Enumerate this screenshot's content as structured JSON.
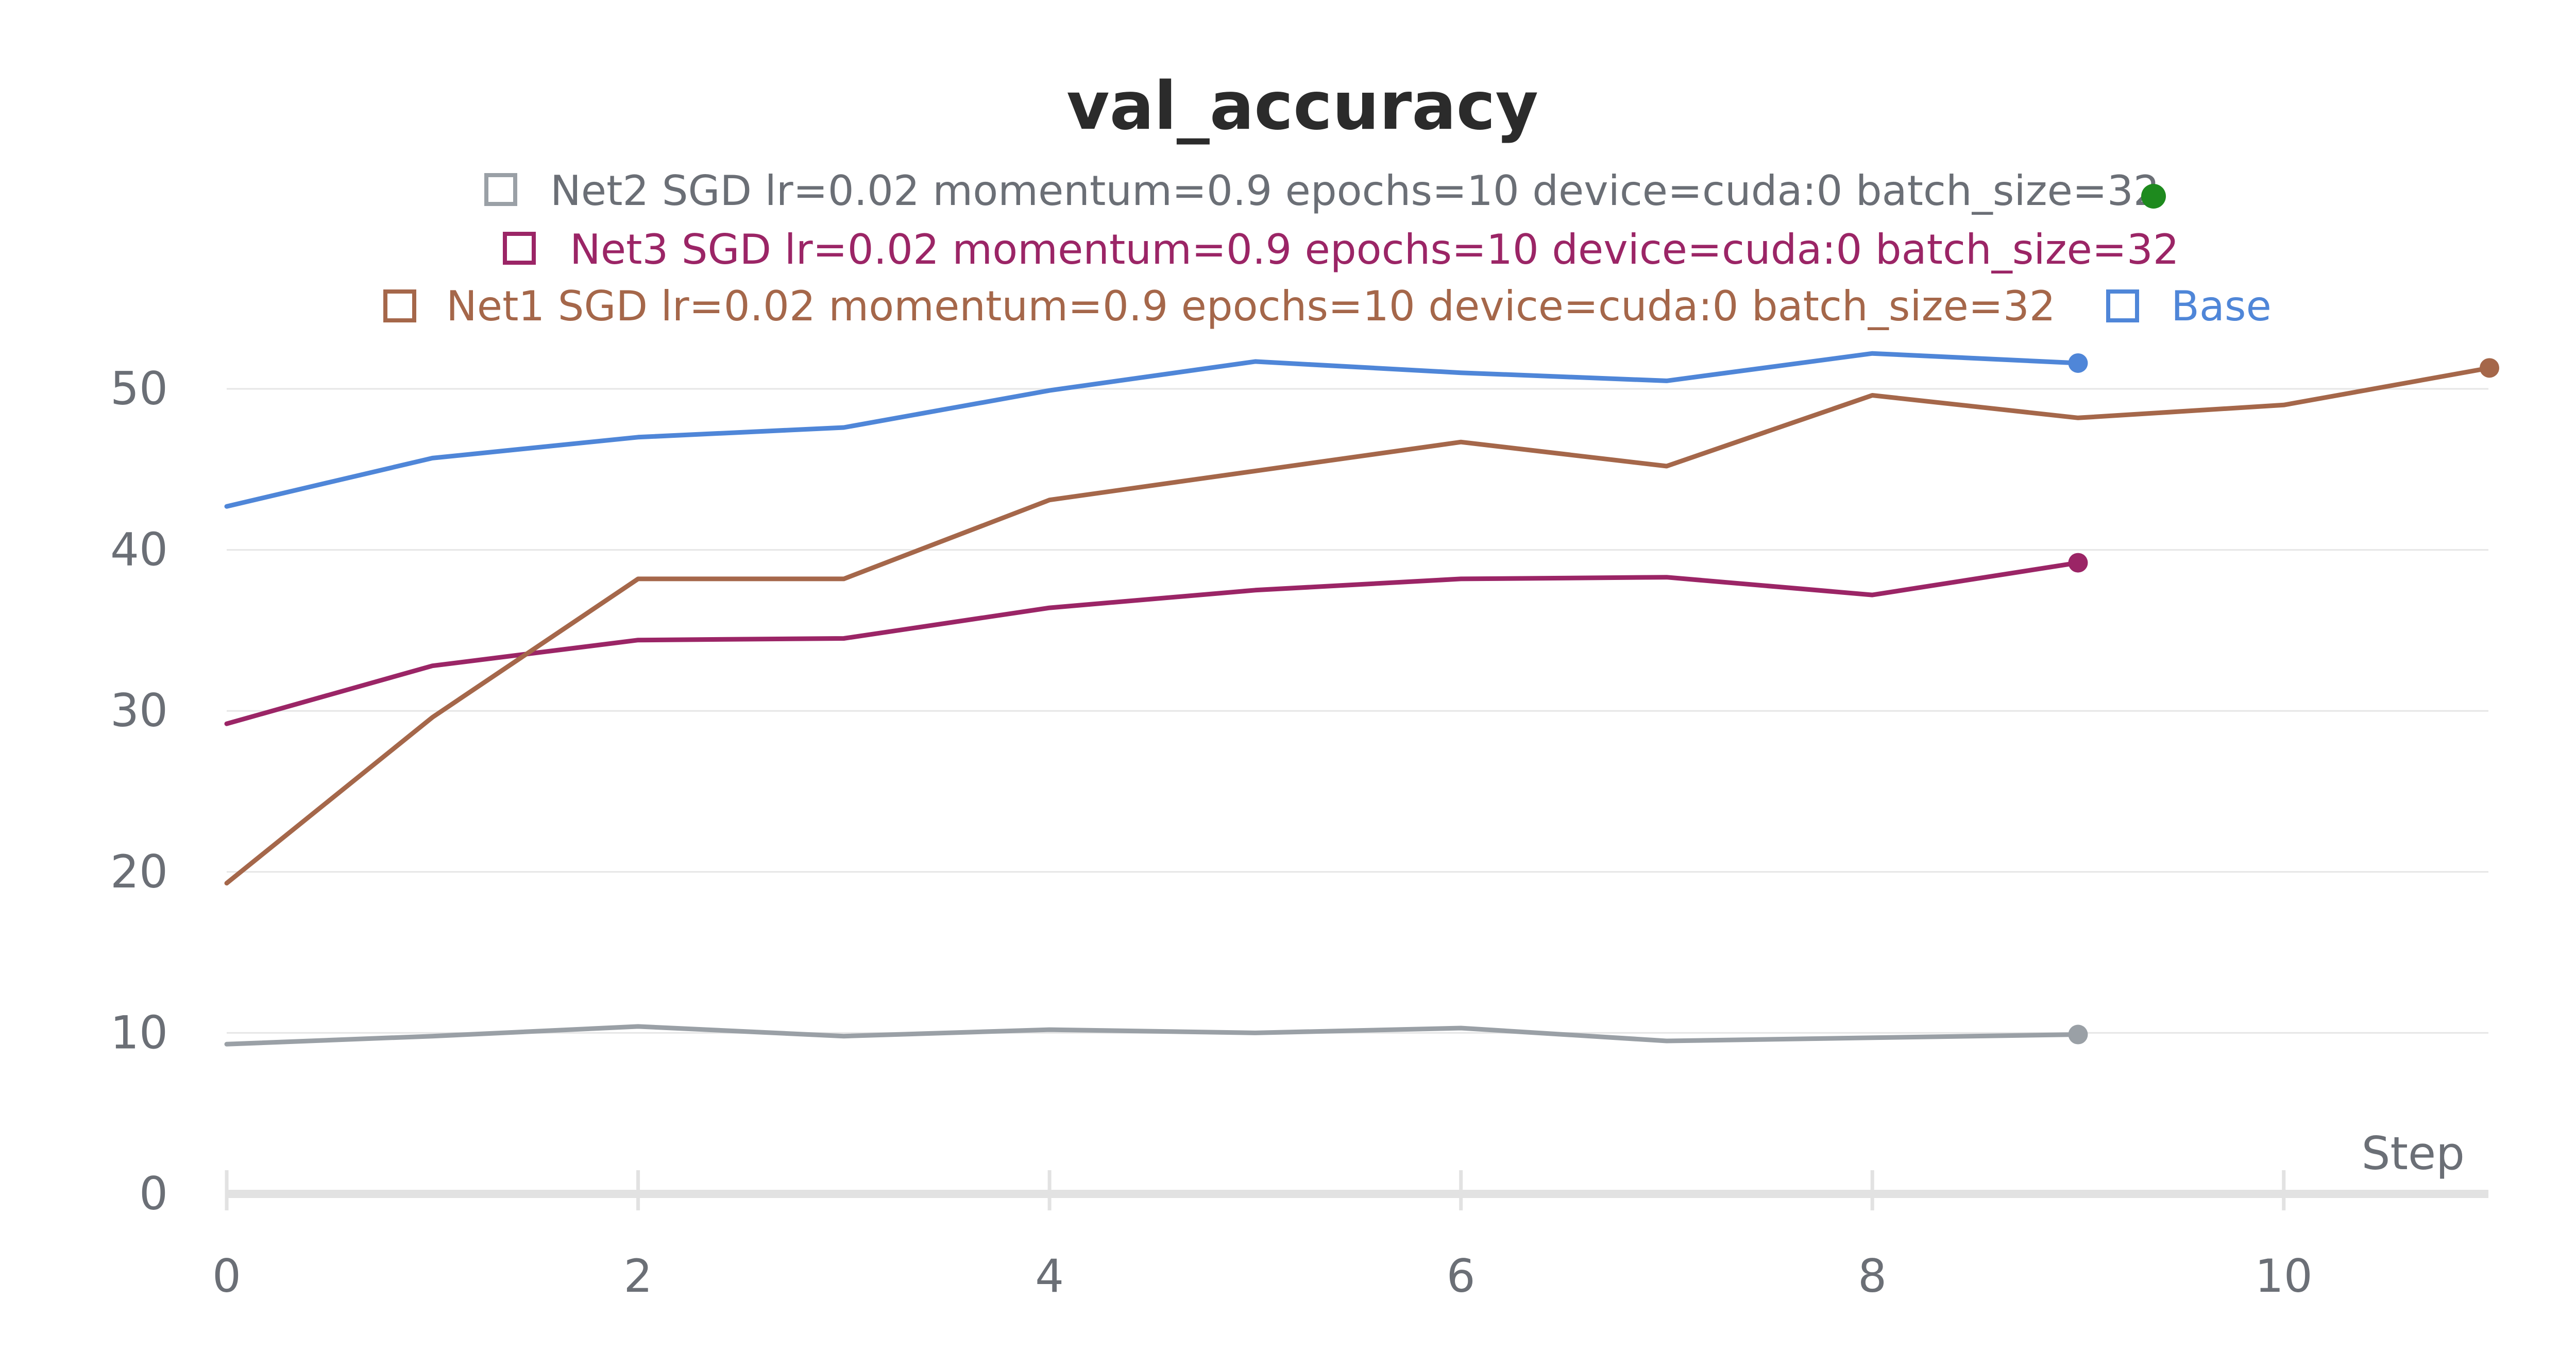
{
  "chart_data": {
    "type": "line",
    "title": "val_accuracy",
    "xlabel": "Step",
    "ylabel": "",
    "xlim": [
      0,
      11
    ],
    "ylim": [
      0,
      55
    ],
    "x_ticks": [
      0,
      2,
      4,
      6,
      8,
      10
    ],
    "y_ticks": [
      0,
      10,
      20,
      30,
      40,
      50
    ],
    "grid": true,
    "legend_position": "top",
    "series": [
      {
        "name": "Net2 SGD lr=0.02 momentum=0.9 epochs=10 device=cuda:0 batch_size=32",
        "color": "#9aa0a6",
        "x": [
          0,
          1,
          2,
          3,
          4,
          5,
          6,
          7,
          8,
          9
        ],
        "values": [
          9.3,
          9.8,
          10.4,
          9.8,
          10.2,
          10.0,
          10.3,
          9.5,
          9.7,
          9.9
        ]
      },
      {
        "name": "Net3 SGD lr=0.02 momentum=0.9 epochs=10 device=cuda:0 batch_size=32",
        "color": "#9b2566",
        "x": [
          0,
          1,
          2,
          3,
          4,
          5,
          6,
          7,
          8,
          9
        ],
        "values": [
          29.2,
          32.8,
          34.4,
          34.5,
          36.4,
          37.5,
          38.2,
          38.3,
          37.2,
          39.2
        ]
      },
      {
        "name": "Net1 SGD lr=0.02 momentum=0.9 epochs=10 device=cuda:0 batch_size=32",
        "color": "#a5674a",
        "x": [
          0,
          1,
          2,
          3,
          4,
          5,
          6,
          7,
          8,
          9,
          10,
          11
        ],
        "values": [
          19.3,
          29.6,
          38.2,
          38.2,
          43.1,
          44.9,
          46.7,
          45.2,
          49.6,
          48.2,
          49.0,
          51.3
        ]
      },
      {
        "name": "Base",
        "color": "#4f86d8",
        "x": [
          0,
          1,
          2,
          3,
          4,
          5,
          6,
          7,
          8,
          9
        ],
        "values": [
          42.7,
          45.7,
          47.0,
          47.6,
          49.9,
          51.7,
          51.0,
          50.5,
          52.2,
          51.6
        ]
      }
    ],
    "legend_marker_color": "#1e8a1e"
  }
}
